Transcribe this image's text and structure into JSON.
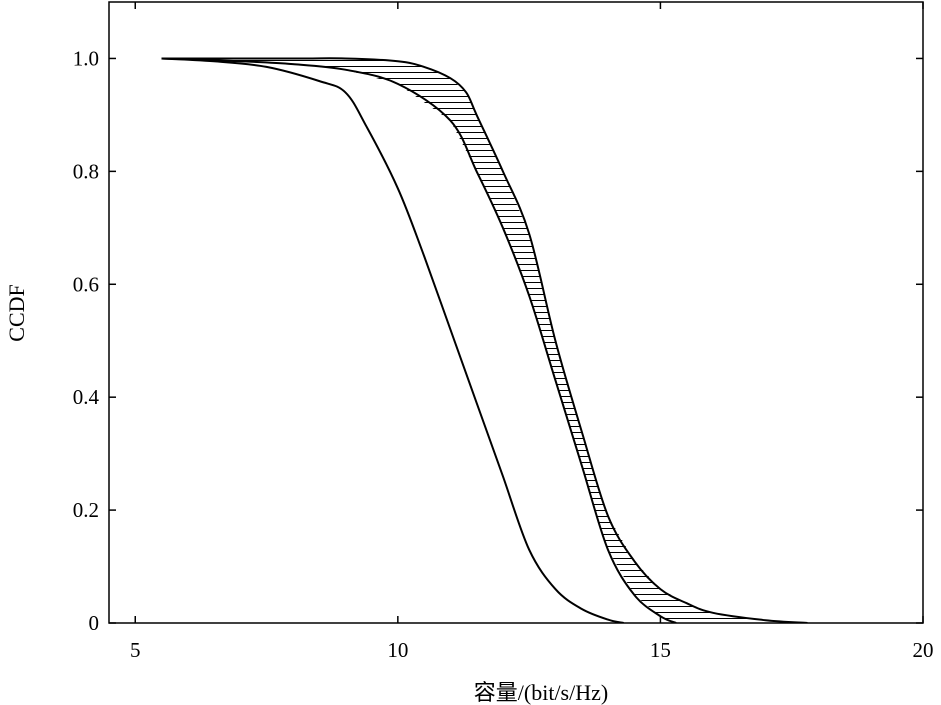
{
  "chart_data": {
    "type": "line",
    "title": "",
    "xlabel": "容量/(bit/s/Hz)",
    "ylabel": "CCDF",
    "xlim": [
      4.5,
      20
    ],
    "ylim": [
      0,
      1.1
    ],
    "x_ticks": [
      5,
      10,
      15,
      20
    ],
    "x_tick_labels": [
      "5",
      "10",
      "15",
      "20"
    ],
    "y_ticks": [
      0,
      0.2,
      0.4,
      0.6,
      0.8,
      1.0
    ],
    "y_tick_labels": [
      "0",
      "0.2",
      "0.4",
      "0.6",
      "0.8",
      "1.0"
    ],
    "grid": false,
    "legend": "none",
    "line_color": "#000000",
    "series": [
      {
        "x": [
          5.5,
          6.5,
          7.5,
          8.5,
          9.0,
          9.4,
          10.0,
          10.5,
          11.0,
          11.5,
          12.0,
          12.5,
          13.0,
          13.5,
          14.0,
          14.3
        ],
        "y": [
          1.0,
          0.995,
          0.985,
          0.96,
          0.94,
          0.88,
          0.77,
          0.65,
          0.52,
          0.39,
          0.26,
          0.13,
          0.06,
          0.025,
          0.006,
          0.0
        ]
      },
      {
        "x": [
          5.5,
          7.0,
          8.0,
          9.0,
          10.0,
          11.0,
          11.5,
          12.0,
          12.5,
          13.0,
          13.5,
          14.0,
          14.5,
          15.0,
          15.3
        ],
        "y": [
          1.0,
          0.995,
          0.99,
          0.98,
          0.955,
          0.89,
          0.8,
          0.7,
          0.58,
          0.43,
          0.28,
          0.13,
          0.05,
          0.012,
          0.0
        ]
      },
      {
        "x": [
          5.5,
          8.0,
          9.0,
          10.0,
          10.5,
          11.0,
          11.3,
          11.5,
          12.0,
          12.5,
          13.0,
          13.5,
          14.0,
          14.5,
          15.0,
          15.5,
          16.0,
          17.0,
          17.8
        ],
        "y": [
          1.0,
          1.0,
          1.0,
          0.995,
          0.985,
          0.965,
          0.94,
          0.9,
          0.8,
          0.69,
          0.5,
          0.34,
          0.19,
          0.11,
          0.06,
          0.035,
          0.018,
          0.005,
          0.0
        ]
      }
    ],
    "shaded_band": {
      "between": [
        1,
        2
      ],
      "pattern": "horizontal-hatch"
    }
  }
}
